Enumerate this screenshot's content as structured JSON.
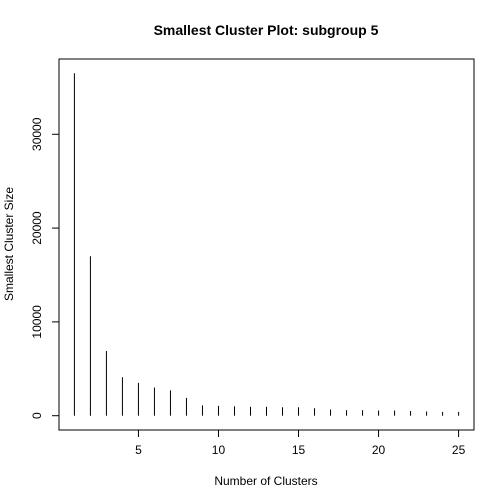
{
  "chart_data": {
    "type": "bar",
    "style": "histogram-spikes",
    "title": "Smallest Cluster Plot: subgroup  5",
    "xlabel": "Number of Clusters",
    "ylabel": "Smallest Cluster Size",
    "x": [
      1,
      2,
      3,
      4,
      5,
      6,
      7,
      8,
      9,
      10,
      11,
      12,
      13,
      14,
      15,
      16,
      17,
      18,
      19,
      20,
      21,
      22,
      23,
      24,
      25
    ],
    "values": [
      36500,
      17000,
      6900,
      4100,
      3500,
      3000,
      2700,
      1900,
      1100,
      1050,
      1000,
      950,
      950,
      900,
      900,
      800,
      650,
      600,
      600,
      550,
      550,
      500,
      450,
      400,
      400
    ],
    "xlim": [
      1,
      25
    ],
    "ylim": [
      0,
      36500
    ],
    "xticks": [
      5,
      10,
      15,
      20,
      25
    ],
    "yticks": [
      0,
      10000,
      20000,
      30000
    ],
    "grid": false,
    "line_color": "#000000"
  }
}
